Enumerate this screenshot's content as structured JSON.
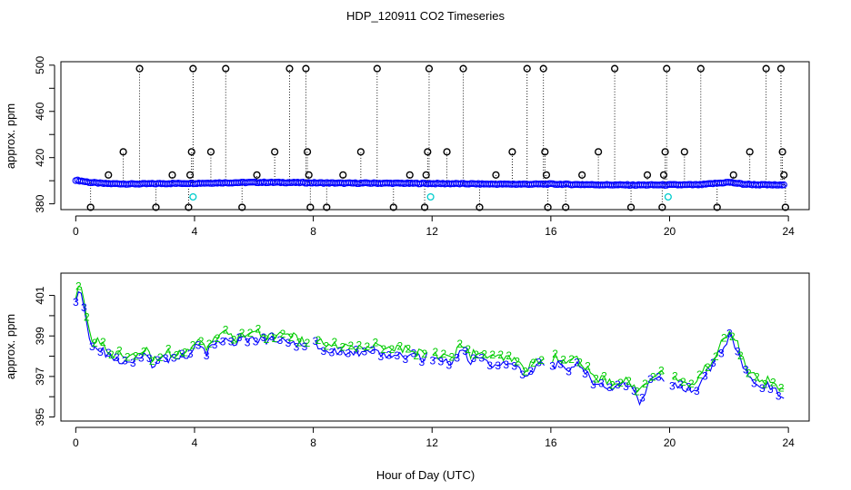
{
  "figure": {
    "title": "HDP_120911  CO2 Timeseries",
    "xlabel": "Hour of Day (UTC)"
  },
  "chart_data": [
    {
      "type": "scatter",
      "panel": "top",
      "ylabel": "approx. ppm",
      "xlim": [
        -0.5,
        24.7
      ],
      "ylim": [
        375,
        503
      ],
      "x_ticks": [
        0,
        4,
        8,
        12,
        16,
        20,
        24
      ],
      "y_ticks": [
        380,
        420,
        460,
        500
      ],
      "y_minor_ticks": [
        400,
        440,
        480
      ],
      "colors": {
        "main": "#0000ff",
        "spike": "#000000",
        "highlight": "#00cccc"
      },
      "baseline": [
        [
          0.0,
          400.5
        ],
        [
          0.5,
          398.5
        ],
        [
          1.0,
          397.5
        ],
        [
          2.0,
          397.2
        ],
        [
          3.0,
          397.6
        ],
        [
          4.0,
          397.8
        ],
        [
          5.0,
          398.2
        ],
        [
          6.0,
          398.6
        ],
        [
          7.0,
          398.5
        ],
        [
          8.0,
          398.2
        ],
        [
          9.0,
          397.9
        ],
        [
          10.0,
          397.9
        ],
        [
          11.0,
          397.8
        ],
        [
          12.0,
          397.6
        ],
        [
          13.0,
          397.4
        ],
        [
          14.0,
          397.1
        ],
        [
          15.0,
          397.0
        ],
        [
          16.0,
          397.1
        ],
        [
          17.0,
          396.7
        ],
        [
          18.0,
          396.4
        ],
        [
          19.0,
          396.3
        ],
        [
          20.0,
          396.4
        ],
        [
          21.0,
          396.5
        ],
        [
          22.0,
          398.7
        ],
        [
          22.5,
          397.0
        ],
        [
          23.0,
          396.5
        ],
        [
          23.85,
          396.2
        ]
      ],
      "spikes": [
        [
          0.5,
          377
        ],
        [
          1.1,
          405
        ],
        [
          1.6,
          425
        ],
        [
          2.15,
          497
        ],
        [
          2.7,
          377
        ],
        [
          3.25,
          405
        ],
        [
          3.8,
          377
        ],
        [
          3.85,
          405
        ],
        [
          3.9,
          425
        ],
        [
          3.95,
          497
        ],
        [
          4.55,
          425
        ],
        [
          5.05,
          497
        ],
        [
          5.6,
          377
        ],
        [
          6.1,
          405
        ],
        [
          6.7,
          425
        ],
        [
          7.2,
          497
        ],
        [
          7.75,
          497
        ],
        [
          7.8,
          425
        ],
        [
          7.85,
          405
        ],
        [
          7.9,
          377
        ],
        [
          8.45,
          377
        ],
        [
          9.0,
          405
        ],
        [
          9.6,
          425
        ],
        [
          10.15,
          497
        ],
        [
          10.7,
          377
        ],
        [
          11.25,
          405
        ],
        [
          11.75,
          377
        ],
        [
          11.8,
          405
        ],
        [
          11.85,
          425
        ],
        [
          11.9,
          497
        ],
        [
          12.5,
          425
        ],
        [
          13.05,
          497
        ],
        [
          13.6,
          377
        ],
        [
          14.15,
          405
        ],
        [
          14.7,
          425
        ],
        [
          15.2,
          497
        ],
        [
          15.75,
          497
        ],
        [
          15.8,
          425
        ],
        [
          15.85,
          405
        ],
        [
          15.9,
          377
        ],
        [
          16.5,
          377
        ],
        [
          17.05,
          405
        ],
        [
          17.6,
          425
        ],
        [
          18.15,
          497
        ],
        [
          18.7,
          377
        ],
        [
          19.25,
          405
        ],
        [
          19.75,
          377
        ],
        [
          19.8,
          405
        ],
        [
          19.85,
          425
        ],
        [
          19.9,
          497
        ],
        [
          20.5,
          425
        ],
        [
          21.05,
          497
        ],
        [
          21.6,
          377
        ],
        [
          22.15,
          405
        ],
        [
          22.7,
          425
        ],
        [
          23.25,
          497
        ],
        [
          23.75,
          497
        ],
        [
          23.8,
          425
        ],
        [
          23.85,
          405
        ],
        [
          23.9,
          377
        ]
      ],
      "highlights": [
        [
          3.95,
          386
        ],
        [
          11.95,
          386
        ],
        [
          19.95,
          386
        ]
      ]
    },
    {
      "type": "line",
      "panel": "bottom",
      "ylabel": "approx. ppm",
      "xlim": [
        -0.5,
        24.7
      ],
      "ylim": [
        394.8,
        402.1
      ],
      "x_ticks": [
        0,
        4,
        8,
        12,
        16,
        20,
        24
      ],
      "y_ticks": [
        395,
        397,
        399,
        401
      ],
      "y_minor_ticks": [
        396,
        398,
        400
      ],
      "series": [
        {
          "label": "3",
          "color": "#0000ff",
          "points": [
            [
              0.0,
              400.9
            ],
            [
              0.15,
              401.3
            ],
            [
              0.3,
              400.2
            ],
            [
              0.4,
              399.6
            ],
            [
              0.5,
              398.4
            ],
            [
              0.8,
              398.5
            ],
            [
              1.0,
              398.0
            ],
            [
              1.3,
              397.8
            ],
            [
              1.6,
              397.8
            ],
            [
              2.0,
              397.9
            ],
            [
              2.4,
              398.2
            ],
            [
              2.6,
              397.5
            ],
            [
              3.0,
              397.9
            ],
            [
              3.4,
              397.8
            ],
            [
              3.8,
              398.1
            ],
            [
              4.0,
              398.5
            ],
            [
              4.4,
              398.2
            ],
            [
              4.8,
              398.6
            ],
            [
              5.0,
              399.0
            ],
            [
              5.3,
              398.5
            ],
            [
              5.6,
              398.8
            ],
            [
              6.0,
              398.9
            ],
            [
              6.4,
              398.7
            ],
            [
              6.8,
              398.8
            ],
            [
              7.2,
              398.7
            ],
            [
              7.5,
              398.6
            ],
            [
              7.8,
              398.3
            ],
            [
              8.0,
              398.6
            ],
            [
              8.4,
              398.3
            ],
            [
              8.8,
              398.2
            ],
            [
              9.2,
              398.3
            ],
            [
              9.6,
              398.0
            ],
            [
              10.0,
              398.2
            ],
            [
              10.4,
              398.0
            ],
            [
              10.8,
              398.1
            ],
            [
              11.2,
              398.0
            ],
            [
              11.6,
              397.9
            ],
            [
              11.9,
              398.0
            ],
            [
              12.3,
              397.7
            ],
            [
              12.7,
              397.7
            ],
            [
              13.0,
              398.3
            ],
            [
              13.3,
              397.8
            ],
            [
              13.7,
              397.8
            ],
            [
              14.0,
              397.6
            ],
            [
              14.4,
              397.6
            ],
            [
              14.8,
              397.5
            ],
            [
              15.1,
              397.0
            ],
            [
              15.3,
              397.2
            ],
            [
              15.6,
              397.5
            ],
            [
              15.9,
              397.6
            ],
            [
              16.2,
              397.6
            ],
            [
              16.5,
              397.4
            ],
            [
              16.8,
              397.6
            ],
            [
              17.1,
              397.3
            ],
            [
              17.4,
              396.8
            ],
            [
              17.8,
              396.5
            ],
            [
              18.1,
              396.3
            ],
            [
              18.5,
              396.6
            ],
            [
              18.8,
              396.3
            ],
            [
              19.0,
              395.8
            ],
            [
              19.3,
              396.6
            ],
            [
              19.7,
              396.9
            ],
            [
              20.0,
              396.5
            ],
            [
              20.3,
              396.6
            ],
            [
              20.7,
              396.3
            ],
            [
              20.9,
              396.4
            ],
            [
              21.2,
              397.1
            ],
            [
              21.5,
              397.6
            ],
            [
              21.8,
              398.5
            ],
            [
              22.0,
              399.0
            ],
            [
              22.2,
              398.6
            ],
            [
              22.5,
              397.5
            ],
            [
              22.7,
              396.8
            ],
            [
              23.0,
              396.6
            ],
            [
              23.3,
              396.5
            ],
            [
              23.6,
              396.3
            ],
            [
              23.85,
              396.1
            ]
          ]
        },
        {
          "label": "2",
          "color": "#00cc00",
          "points": [
            [
              0.0,
              401.0
            ],
            [
              0.15,
              401.4
            ],
            [
              0.3,
              400.4
            ],
            [
              0.4,
              399.8
            ],
            [
              0.5,
              398.8
            ],
            [
              0.8,
              398.8
            ],
            [
              1.0,
              398.3
            ],
            [
              1.3,
              398.1
            ],
            [
              1.6,
              398.1
            ],
            [
              2.0,
              398.2
            ],
            [
              2.4,
              398.5
            ],
            [
              2.6,
              397.8
            ],
            [
              3.0,
              398.2
            ],
            [
              3.4,
              398.1
            ],
            [
              3.8,
              398.4
            ],
            [
              4.0,
              398.8
            ],
            [
              4.4,
              398.5
            ],
            [
              4.8,
              398.9
            ],
            [
              5.0,
              399.2
            ],
            [
              5.3,
              398.8
            ],
            [
              5.6,
              399.1
            ],
            [
              6.0,
              399.2
            ],
            [
              6.4,
              399.0
            ],
            [
              6.8,
              399.1
            ],
            [
              7.2,
              399.0
            ],
            [
              7.5,
              398.9
            ],
            [
              7.8,
              398.6
            ],
            [
              8.0,
              398.9
            ],
            [
              8.4,
              398.6
            ],
            [
              8.8,
              398.5
            ],
            [
              9.2,
              398.6
            ],
            [
              9.6,
              398.3
            ],
            [
              10.0,
              398.5
            ],
            [
              10.4,
              398.3
            ],
            [
              10.8,
              398.4
            ],
            [
              11.2,
              398.3
            ],
            [
              11.6,
              398.2
            ],
            [
              11.9,
              398.3
            ],
            [
              12.3,
              398.0
            ],
            [
              12.7,
              398.0
            ],
            [
              13.0,
              398.6
            ],
            [
              13.3,
              398.1
            ],
            [
              13.7,
              398.1
            ],
            [
              14.0,
              397.9
            ],
            [
              14.4,
              397.9
            ],
            [
              14.8,
              397.8
            ],
            [
              15.1,
              397.2
            ],
            [
              15.3,
              397.5
            ],
            [
              15.6,
              397.8
            ],
            [
              15.9,
              397.9
            ],
            [
              16.2,
              397.9
            ],
            [
              16.5,
              397.7
            ],
            [
              16.8,
              397.9
            ],
            [
              17.1,
              397.6
            ],
            [
              17.4,
              397.0
            ],
            [
              17.8,
              396.8
            ],
            [
              18.1,
              396.6
            ],
            [
              18.5,
              396.9
            ],
            [
              18.8,
              396.6
            ],
            [
              19.0,
              396.2
            ],
            [
              19.3,
              396.9
            ],
            [
              19.7,
              397.2
            ],
            [
              20.0,
              396.8
            ],
            [
              20.3,
              396.9
            ],
            [
              20.7,
              396.6
            ],
            [
              20.9,
              396.7
            ],
            [
              21.2,
              397.4
            ],
            [
              21.5,
              397.9
            ],
            [
              21.8,
              398.8
            ],
            [
              22.0,
              399.2
            ],
            [
              22.2,
              398.9
            ],
            [
              22.5,
              397.8
            ],
            [
              22.7,
              397.1
            ],
            [
              23.0,
              396.9
            ],
            [
              23.3,
              396.8
            ],
            [
              23.6,
              396.6
            ],
            [
              23.85,
              396.4
            ]
          ]
        }
      ]
    }
  ]
}
